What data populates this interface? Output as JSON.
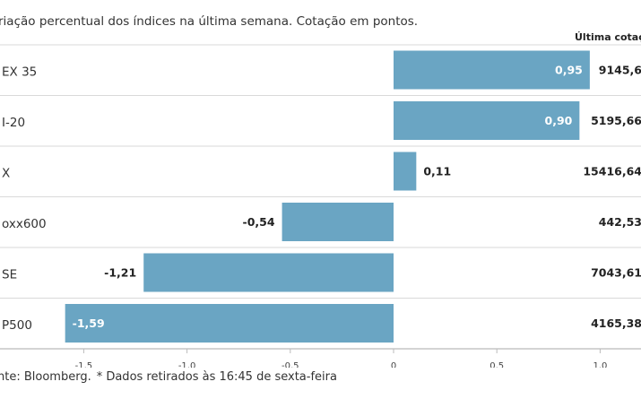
{
  "header": {
    "subtitle": "riação percentual dos índices na última semana. Cotação em pontos.",
    "quote_column": "Última cotaç"
  },
  "footer": {
    "source": "nte: Bloomberg.",
    "note": "* Dados retirados às 16:45 de sexta-feira"
  },
  "colors": {
    "bar": "#6aa5c3",
    "separator": "#d9d9d9",
    "axis": "#bbbbbb"
  },
  "chart_data": {
    "type": "bar",
    "orientation": "horizontal",
    "categories": [
      "EX 35",
      "I-20",
      "X",
      "oxx600",
      "SE",
      "P500"
    ],
    "values": [
      0.95,
      0.9,
      0.11,
      -0.54,
      -1.21,
      -1.59
    ],
    "value_labels": [
      "0,95",
      "0,90",
      "0,11",
      "-0,54",
      "-1,21",
      "-1,59"
    ],
    "quotes": [
      "9145,6",
      "5195,66",
      "15416,64",
      "442,53",
      "7043,61",
      "4165,38"
    ],
    "xlim": [
      -1.6,
      1.0
    ],
    "x_ticks": [
      -1.5,
      -1.0,
      -0.5,
      0,
      0.5,
      1.0
    ],
    "x_tick_labels": [
      "-1,5",
      "-1,0",
      "-0,5",
      "0",
      "0,5",
      "1,0"
    ],
    "grid": false
  }
}
